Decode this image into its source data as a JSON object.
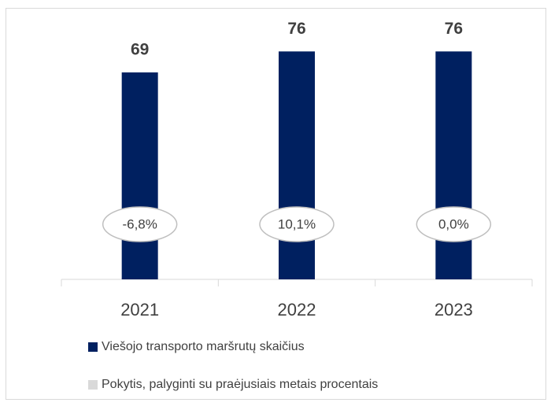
{
  "chart_data": {
    "type": "bar",
    "categories": [
      "2021",
      "2022",
      "2023"
    ],
    "series": [
      {
        "name": "Viešojo transporto maršrutų skaičius",
        "color": "#002060",
        "values": [
          69,
          76,
          76
        ]
      },
      {
        "name": "Pokytis, palyginti su praėjusiais metais procentais",
        "color": "#d9d9d9",
        "values": [
          -6.8,
          10.1,
          0.0
        ],
        "value_labels": [
          "-6,8%",
          "10,1%",
          "0,0%"
        ]
      }
    ],
    "ylim": [
      0,
      90
    ]
  }
}
